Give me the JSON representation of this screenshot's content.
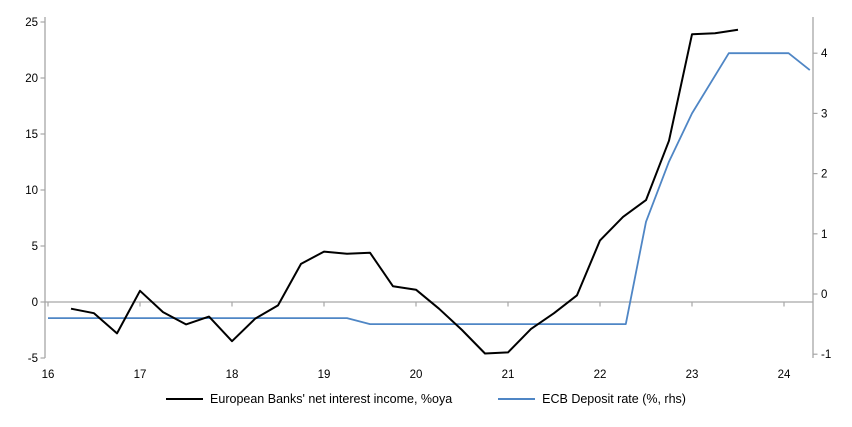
{
  "chart_data": {
    "type": "line",
    "title": "",
    "xlabel": "",
    "ylabel_left": "",
    "ylabel_right": "",
    "grid": false,
    "legend_position": "bottom",
    "x_axis": {
      "min": 16,
      "max": 24.32,
      "tick_values": [
        16,
        17,
        18,
        19,
        20,
        21,
        22,
        23,
        24
      ],
      "tick_labels": [
        "16",
        "17",
        "18",
        "19",
        "20",
        "21",
        "22",
        "23",
        "24"
      ]
    },
    "left_axis": {
      "min": -5,
      "max": 25,
      "tick_values": [
        25,
        20,
        15,
        10,
        5,
        0,
        -5
      ],
      "tick_labels": [
        "25",
        "20",
        "15",
        "10",
        "5",
        "0",
        "-5"
      ]
    },
    "right_axis": {
      "min": -1,
      "max": 4,
      "tick_values": [
        4,
        3,
        2,
        1,
        0,
        -1
      ],
      "tick_labels": [
        "4",
        "3",
        "2",
        "1",
        "0",
        "-1"
      ]
    },
    "series": [
      {
        "name": "European Banks' net interest income, %oya",
        "axis": "left",
        "color": "#000000",
        "width": 2,
        "points": [
          [
            16.25,
            -0.6
          ],
          [
            16.5,
            -1.0
          ],
          [
            16.75,
            -2.8
          ],
          [
            17.0,
            1.0
          ],
          [
            17.25,
            -0.9
          ],
          [
            17.5,
            -2.0
          ],
          [
            17.75,
            -1.3
          ],
          [
            18.0,
            -3.5
          ],
          [
            18.25,
            -1.5
          ],
          [
            18.5,
            -0.3
          ],
          [
            18.75,
            3.4
          ],
          [
            19.0,
            4.5
          ],
          [
            19.25,
            4.3
          ],
          [
            19.5,
            4.4
          ],
          [
            19.75,
            1.4
          ],
          [
            20.0,
            1.1
          ],
          [
            20.25,
            -0.6
          ],
          [
            20.5,
            -2.5
          ],
          [
            20.75,
            -4.6
          ],
          [
            21.0,
            -4.5
          ],
          [
            21.25,
            -2.4
          ],
          [
            21.5,
            -1.0
          ],
          [
            21.75,
            0.6
          ],
          [
            22.0,
            5.5
          ],
          [
            22.25,
            7.6
          ],
          [
            22.5,
            9.1
          ],
          [
            22.75,
            14.4
          ],
          [
            23.0,
            23.9
          ],
          [
            23.25,
            24.0
          ],
          [
            23.5,
            24.3
          ]
        ]
      },
      {
        "name": "ECB Deposit rate (%, rhs)",
        "axis": "right",
        "color": "#4f86c5",
        "width": 1.8,
        "points": [
          [
            16.0,
            -0.4
          ],
          [
            19.25,
            -0.4
          ],
          [
            19.5,
            -0.5
          ],
          [
            22.28,
            -0.5
          ],
          [
            22.5,
            1.2
          ],
          [
            22.75,
            2.2
          ],
          [
            23.0,
            3.0
          ],
          [
            23.4,
            4.0
          ],
          [
            24.05,
            4.0
          ],
          [
            24.28,
            3.72
          ]
        ]
      }
    ]
  },
  "legend": {
    "items": [
      {
        "label": "European Banks' net interest income, %oya",
        "color": "#000000"
      },
      {
        "label": "ECB Deposit rate (%, rhs)",
        "color": "#4f86c5"
      }
    ]
  },
  "colors": {
    "background": "#ffffff",
    "axis": "#a6a6a6",
    "zero_line": "#a6a6a6",
    "text": "#000000"
  }
}
